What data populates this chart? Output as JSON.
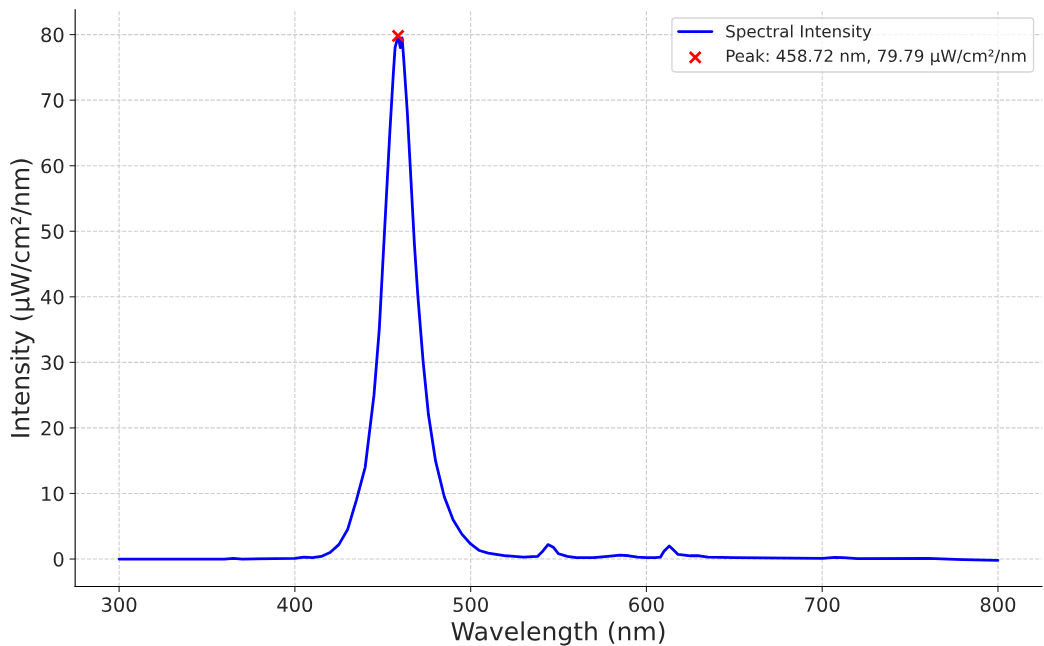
{
  "chart_data": {
    "type": "line",
    "xlabel": "Wavelength (nm)",
    "ylabel": "Intensity (µW/cm²/nm)",
    "xlim": [
      275,
      825
    ],
    "ylim": [
      -4.2,
      83.8
    ],
    "xticks": [
      300,
      400,
      500,
      600,
      700,
      800
    ],
    "yticks": [
      0,
      10,
      20,
      30,
      40,
      50,
      60,
      70,
      80
    ],
    "grid": true,
    "legend": "top right",
    "series": [
      {
        "name": "Spectral Intensity",
        "color": "#0000ff",
        "line_style": "solid",
        "marker": "none",
        "x": [
          300,
          360,
          365,
          370,
          400,
          405,
          410,
          415,
          420,
          425,
          430,
          435,
          440,
          445,
          448,
          450,
          452,
          454,
          456,
          457,
          458.72,
          460,
          461,
          462,
          464,
          466,
          468,
          470,
          473,
          476,
          480,
          485,
          490,
          495,
          500,
          505,
          510,
          520,
          530,
          538,
          541,
          544,
          547,
          550,
          555,
          560,
          570,
          578,
          585,
          590,
          595,
          600,
          605,
          608,
          610,
          613,
          615,
          618,
          625,
          630,
          635,
          650,
          700,
          707,
          712,
          720,
          760,
          780,
          800
        ],
        "values": [
          0,
          0,
          0.1,
          0,
          0.1,
          0.3,
          0.2,
          0.4,
          1.0,
          2.2,
          4.5,
          9,
          14,
          25,
          35,
          45,
          55,
          65,
          74,
          78,
          79.79,
          78,
          79.5,
          76,
          68,
          58,
          48,
          40,
          30,
          22,
          15,
          9.5,
          6,
          3.8,
          2.3,
          1.3,
          0.9,
          0.5,
          0.3,
          0.4,
          1.2,
          2.2,
          1.8,
          0.8,
          0.4,
          0.2,
          0.2,
          0.4,
          0.6,
          0.5,
          0.3,
          0.2,
          0.2,
          0.3,
          1.2,
          2.0,
          1.5,
          0.7,
          0.5,
          0.5,
          0.3,
          0.2,
          0.1,
          0.25,
          0.2,
          0.05,
          0.1,
          -0.1,
          -0.2
        ]
      },
      {
        "name": "Peak: 458.72 nm, 79.79 µW/cm²/nm",
        "type": "scatter",
        "color": "#ff0000",
        "marker": "cross",
        "x": [
          458.72
        ],
        "values": [
          79.79
        ]
      }
    ]
  }
}
